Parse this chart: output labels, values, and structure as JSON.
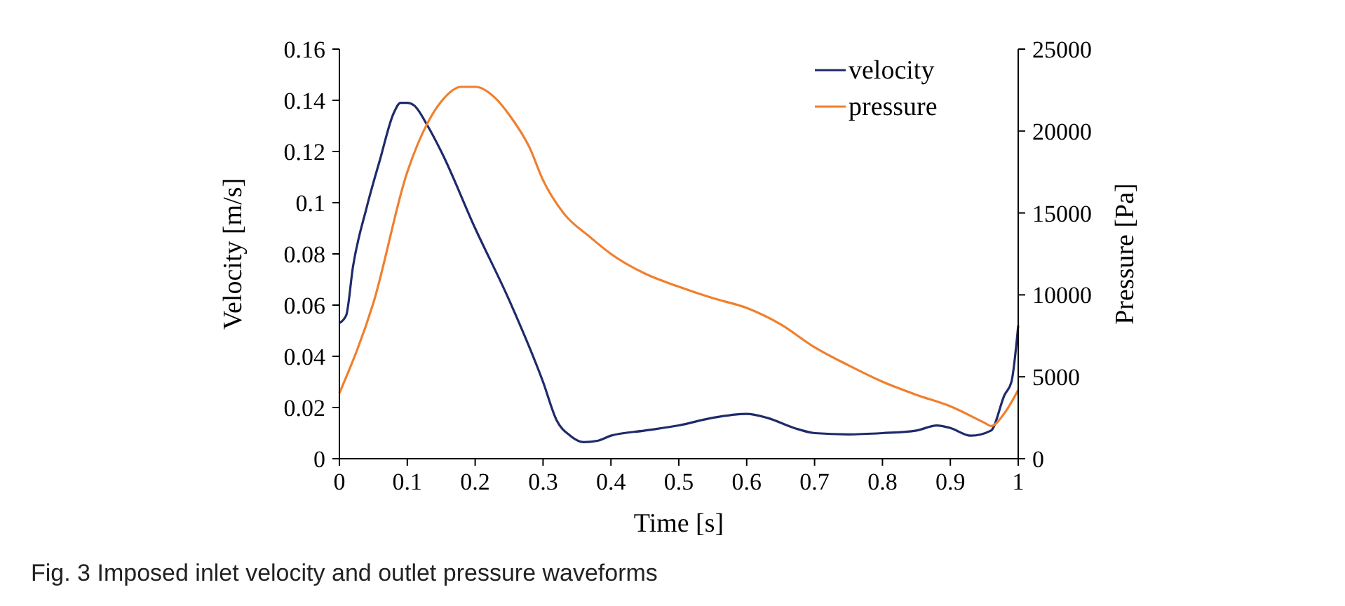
{
  "chart_data": {
    "type": "line",
    "xlabel": "Time [s]",
    "ylabel": "Velocity [m/s]",
    "y2label": "Pressure [Pa]",
    "annotations": [
      "Fig. 3 Imposed inlet velocity and outlet pressure waveforms"
    ],
    "xlim": [
      0,
      1
    ],
    "xticks": [
      0,
      0.1,
      0.2,
      0.3,
      0.4,
      0.5,
      0.6,
      0.7,
      0.8,
      0.9,
      1
    ],
    "ylim": [
      0,
      0.16
    ],
    "yticks": [
      0,
      0.02,
      0.04,
      0.06,
      0.08,
      0.1,
      0.12,
      0.14,
      0.16
    ],
    "y2lim": [
      0,
      25000
    ],
    "y2ticks": [
      0,
      5000,
      10000,
      15000,
      20000,
      25000
    ],
    "legend": "top right",
    "grid": false,
    "marker": "none",
    "line_style": "solid",
    "series": [
      {
        "name": "velocity",
        "color": "#1f2a6b",
        "x": [
          0,
          0.01,
          0.02,
          0.04,
          0.06,
          0.08,
          0.09,
          0.1,
          0.11,
          0.13,
          0.15,
          0.2,
          0.25,
          0.3,
          0.32,
          0.34,
          0.36,
          0.38,
          0.4,
          0.45,
          0.5,
          0.55,
          0.6,
          0.63,
          0.67,
          0.7,
          0.75,
          0.8,
          0.85,
          0.88,
          0.9,
          0.93,
          0.96,
          0.98,
          0.99,
          1
        ],
        "values": [
          0.053,
          0.056,
          0.075,
          0.098,
          0.117,
          0.135,
          0.139,
          0.139,
          0.138,
          0.13,
          0.12,
          0.09,
          0.062,
          0.03,
          0.015,
          0.009,
          0.0065,
          0.007,
          0.009,
          0.011,
          0.013,
          0.016,
          0.0175,
          0.016,
          0.012,
          0.01,
          0.0095,
          0.01,
          0.011,
          0.013,
          0.012,
          0.009,
          0.011,
          0.025,
          0.03,
          0.052
        ]
      },
      {
        "name": "pressure",
        "color": "#f07f2d",
        "axis": "y2",
        "x": [
          0,
          0.05,
          0.1,
          0.13,
          0.15,
          0.18,
          0.2,
          0.23,
          0.25,
          0.28,
          0.3,
          0.33,
          0.37,
          0.4,
          0.45,
          0.5,
          0.55,
          0.6,
          0.65,
          0.7,
          0.75,
          0.8,
          0.85,
          0.9,
          0.95,
          0.96,
          0.98,
          1
        ],
        "values": [
          4000,
          9500,
          17500,
          20500,
          21800,
          22700,
          22700,
          22000,
          21000,
          19000,
          17000,
          15000,
          13500,
          12500,
          11300,
          10500,
          9800,
          9200,
          8200,
          6800,
          5700,
          4700,
          3900,
          3200,
          2200,
          2000,
          2800,
          4200
        ]
      }
    ]
  }
}
